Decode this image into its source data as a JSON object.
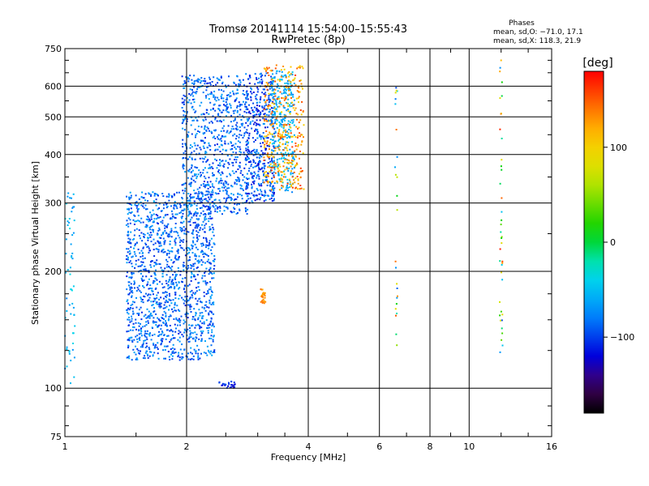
{
  "chart_data": {
    "type": "scatter",
    "title": "Tromsø 20141114 15:54:00–15:55:43",
    "subtitle": "RwPretec (8p)",
    "xlabel": "Frequency [MHz]",
    "ylabel": "Stationary phase Virtual Height [km]",
    "x_scale": "log",
    "y_scale": "log",
    "xlim": [
      1,
      16
    ],
    "ylim": [
      75,
      750
    ],
    "x_ticks": [
      1,
      2,
      4,
      6,
      8,
      10,
      16
    ],
    "x_tick_labels": [
      "1",
      "2",
      "4",
      "6",
      "8",
      "10",
      "16"
    ],
    "y_ticks": [
      75,
      100,
      200,
      300,
      400,
      500,
      600,
      750
    ],
    "y_tick_labels": [
      "75",
      "100",
      "200",
      "300",
      "400",
      "500",
      "600",
      "750"
    ],
    "grid": true,
    "phases": {
      "heading": "Phases",
      "line_o": "mean, sd,O: −71.0, 17.1",
      "line_x": "mean, sd,X: 118.3, 21.9"
    },
    "colorbar": {
      "label": "[deg]",
      "range": [
        -180,
        180
      ],
      "ticks": [
        100,
        0,
        -100
      ],
      "tick_labels": [
        "100",
        "0",
        "−100"
      ]
    },
    "point_groups": [
      {
        "f": [
          1.0,
          1.06
        ],
        "h": [
          100,
          320
        ],
        "phase": [
          -80,
          -30
        ],
        "count": 60
      },
      {
        "f": [
          1.42,
          2.35
        ],
        "h": [
          118,
          320
        ],
        "phase": [
          -110,
          -60
        ],
        "count": 1500
      },
      {
        "f": [
          1.95,
          2.85
        ],
        "h": [
          280,
          640
        ],
        "phase": [
          -110,
          -60
        ],
        "count": 800
      },
      {
        "f": [
          2.8,
          3.3
        ],
        "h": [
          300,
          650
        ],
        "phase": [
          -125,
          -65
        ],
        "count": 450
      },
      {
        "f": [
          3.25,
          3.7
        ],
        "h": [
          320,
          660
        ],
        "phase": [
          -80,
          -40
        ],
        "count": 300
      },
      {
        "f": [
          3.1,
          3.9
        ],
        "h": [
          320,
          680
        ],
        "phase": [
          90,
          160
        ],
        "count": 350
      },
      {
        "f": [
          3.05,
          3.15
        ],
        "h": [
          165,
          180
        ],
        "phase": [
          120,
          150
        ],
        "count": 30
      },
      {
        "f": [
          2.4,
          2.65
        ],
        "h": [
          100,
          104
        ],
        "phase": [
          -130,
          -90
        ],
        "count": 25
      },
      {
        "f": [
          6.55,
          6.65
        ],
        "h": [
          120,
          620
        ],
        "phase": [
          -100,
          160
        ],
        "count": 25
      },
      {
        "f": [
          11.9,
          12.1
        ],
        "h": [
          120,
          700
        ],
        "phase": [
          -110,
          170
        ],
        "count": 40
      }
    ]
  }
}
